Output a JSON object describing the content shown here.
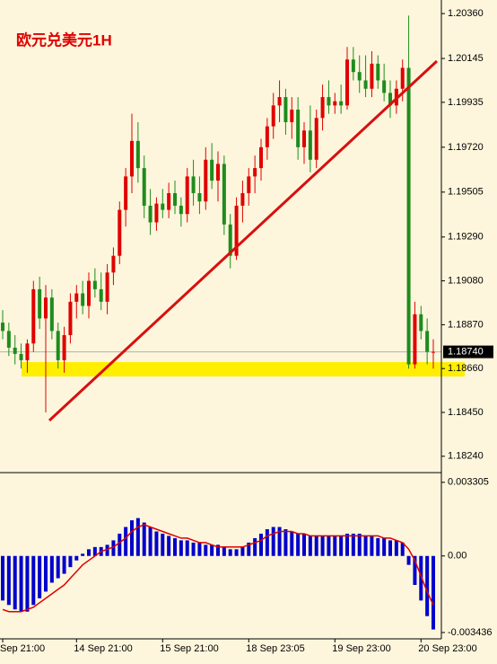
{
  "chart_data": [
    {
      "type": "candlestick",
      "title": "欧元兑美元1H",
      "up_color": "#e00000",
      "down_color": "#1e8c1e",
      "ylim": [
        1.18166,
        1.20425
      ],
      "yticks": [
        {
          "value": 1.2036,
          "label": "1.20360"
        },
        1.20145,
        1.19935,
        {
          "value": 1.1972,
          "label": "1.19720"
        },
        1.19505,
        {
          "value": 1.1929,
          "label": "1.19290"
        },
        {
          "value": 1.1908,
          "label": "1.19080"
        },
        {
          "value": 1.1887,
          "label": "1.18870"
        },
        {
          "value": 1.1866,
          "label": "1.18660"
        },
        {
          "value": 1.1845,
          "label": "1.18450"
        },
        {
          "value": 1.1824,
          "label": "1.18240"
        }
      ],
      "current_price": {
        "value": 1.1874,
        "label": "1.18740"
      },
      "ohlc": [
        [
          1.1888,
          1.1894,
          1.188,
          1.1884
        ],
        [
          1.1884,
          1.1888,
          1.1872,
          1.1876
        ],
        [
          1.1876,
          1.1882,
          1.1868,
          1.1873
        ],
        [
          1.1873,
          1.1878,
          1.1866,
          1.187
        ],
        [
          1.187,
          1.188,
          1.1864,
          1.1878
        ],
        [
          1.1878,
          1.1908,
          1.1874,
          1.1904
        ],
        [
          1.1904,
          1.191,
          1.1885,
          1.189
        ],
        [
          1.189,
          1.1906,
          1.1845,
          1.19
        ],
        [
          1.19,
          1.1904,
          1.188,
          1.1884
        ],
        [
          1.1884,
          1.1888,
          1.1866,
          1.187
        ],
        [
          1.187,
          1.1886,
          1.1864,
          1.1882
        ],
        [
          1.1882,
          1.1902,
          1.1878,
          1.1898
        ],
        [
          1.1898,
          1.1906,
          1.189,
          1.1902
        ],
        [
          1.1902,
          1.1908,
          1.1892,
          1.1896
        ],
        [
          1.1896,
          1.1912,
          1.189,
          1.1908
        ],
        [
          1.1908,
          1.1914,
          1.19,
          1.1904
        ],
        [
          1.1904,
          1.1912,
          1.1894,
          1.1898
        ],
        [
          1.1898,
          1.1916,
          1.1892,
          1.1912
        ],
        [
          1.1912,
          1.1924,
          1.1906,
          1.192
        ],
        [
          1.192,
          1.1946,
          1.1916,
          1.1942
        ],
        [
          1.1942,
          1.1962,
          1.1934,
          1.1958
        ],
        [
          1.1958,
          1.1988,
          1.195,
          1.1975
        ],
        [
          1.1975,
          1.1984,
          1.1955,
          1.1962
        ],
        [
          1.1962,
          1.1968,
          1.1938,
          1.1944
        ],
        [
          1.1944,
          1.1952,
          1.193,
          1.1936
        ],
        [
          1.1936,
          1.1948,
          1.1932,
          1.1945
        ],
        [
          1.1945,
          1.1952,
          1.1938,
          1.1942
        ],
        [
          1.1942,
          1.1955,
          1.1938,
          1.195
        ],
        [
          1.195,
          1.1956,
          1.194,
          1.1944
        ],
        [
          1.1944,
          1.1948,
          1.1934,
          1.194
        ],
        [
          1.194,
          1.1962,
          1.1936,
          1.1958
        ],
        [
          1.1958,
          1.1966,
          1.1944,
          1.195
        ],
        [
          1.195,
          1.1958,
          1.194,
          1.1946
        ],
        [
          1.1946,
          1.1972,
          1.1942,
          1.1966
        ],
        [
          1.1966,
          1.1974,
          1.1952,
          1.1956
        ],
        [
          1.1956,
          1.197,
          1.1946,
          1.1964
        ],
        [
          1.1964,
          1.1968,
          1.193,
          1.1935
        ],
        [
          1.1935,
          1.194,
          1.1914,
          1.192
        ],
        [
          1.192,
          1.1948,
          1.1918,
          1.1944
        ],
        [
          1.1944,
          1.1956,
          1.1936,
          1.195
        ],
        [
          1.195,
          1.1962,
          1.1944,
          1.1958
        ],
        [
          1.1958,
          1.1968,
          1.195,
          1.1962
        ],
        [
          1.1962,
          1.1976,
          1.1956,
          1.1972
        ],
        [
          1.1972,
          1.1986,
          1.1966,
          1.1982
        ],
        [
          1.1982,
          1.1998,
          1.1976,
          1.1992
        ],
        [
          1.1992,
          1.2004,
          1.1984,
          1.1996
        ],
        [
          1.1996,
          1.2,
          1.1978,
          1.1984
        ],
        [
          1.1984,
          1.1996,
          1.1976,
          1.199
        ],
        [
          1.199,
          1.1996,
          1.1966,
          1.1972
        ],
        [
          1.1972,
          1.1984,
          1.1964,
          1.198
        ],
        [
          1.198,
          1.1992,
          1.196,
          1.1966
        ],
        [
          1.1966,
          1.199,
          1.1962,
          1.1986
        ],
        [
          1.1986,
          1.2002,
          1.198,
          1.1996
        ],
        [
          1.1996,
          1.2004,
          1.1988,
          1.1992
        ],
        [
          1.1992,
          1.1998,
          1.1988,
          1.1994
        ],
        [
          1.1994,
          1.2002,
          1.1988,
          1.1992
        ],
        [
          1.1992,
          1.202,
          1.199,
          1.2014
        ],
        [
          1.2014,
          1.202,
          1.2004,
          1.2008
        ],
        [
          1.2008,
          1.2016,
          1.1998,
          1.2004
        ],
        [
          1.2004,
          1.2016,
          1.1996,
          1.2
        ],
        [
          1.2,
          1.2018,
          1.1996,
          1.2012
        ],
        [
          1.2012,
          1.2016,
          1.2,
          1.2004
        ],
        [
          1.2004,
          1.2012,
          1.1994,
          1.1998
        ],
        [
          1.1998,
          1.2004,
          1.1986,
          1.1992
        ],
        [
          1.1992,
          1.2004,
          1.1988,
          1.2
        ],
        [
          1.2,
          1.2014,
          1.1994,
          1.201
        ],
        [
          1.201,
          1.2035,
          1.1866,
          1.1868
        ],
        [
          1.1868,
          1.1898,
          1.1866,
          1.1892
        ],
        [
          1.1892,
          1.1896,
          1.188,
          1.1884
        ],
        [
          1.1884,
          1.189,
          1.1868,
          1.1874
        ],
        [
          1.1874,
          1.188,
          1.1866,
          1.1874
        ]
      ]
    },
    {
      "type": "macd",
      "ylim": [
        -0.00368,
        0.00366
      ],
      "yticks": [
        0.003305,
        {
          "value": 0,
          "label": "0.00"
        },
        -0.003436
      ],
      "categories": [
        "Sep 21:00",
        null,
        null,
        null,
        null,
        null,
        null,
        null,
        null,
        null,
        null,
        null,
        "14 Sep 21:00",
        null,
        null,
        null,
        null,
        null,
        null,
        null,
        null,
        null,
        null,
        null,
        null,
        null,
        "15 Sep 21:00",
        null,
        null,
        null,
        null,
        null,
        null,
        null,
        null,
        null,
        null,
        null,
        null,
        null,
        "18 Sep 23:05",
        null,
        null,
        null,
        null,
        null,
        null,
        null,
        null,
        null,
        null,
        null,
        null,
        null,
        "19 Sep 23:00",
        null,
        null,
        null,
        null,
        null,
        null,
        null,
        null,
        null,
        null,
        null,
        null,
        null,
        "20 Sep 23:00",
        null,
        null
      ],
      "series": [
        {
          "kind": "bar",
          "color": "#0000cc",
          "values": [
            -0.002,
            -0.0022,
            -0.0024,
            -0.0025,
            -0.0025,
            -0.0022,
            -0.0019,
            -0.0016,
            -0.0012,
            -0.001,
            -0.0008,
            -0.0005,
            -0.0002,
            0.0001,
            0.0003,
            0.0004,
            0.0004,
            0.0005,
            0.0007,
            0.001,
            0.0013,
            0.0016,
            0.0017,
            0.0015,
            0.0013,
            0.0011,
            0.001,
            0.0009,
            0.0008,
            0.0007,
            0.0007,
            0.0006,
            0.0006,
            0.0005,
            0.0005,
            0.0005,
            0.0004,
            0.0003,
            0.0003,
            0.0004,
            0.0006,
            0.0008,
            0.001,
            0.0012,
            0.0013,
            0.0013,
            0.0012,
            0.0011,
            0.001,
            0.001,
            0.0009,
            0.0009,
            0.0009,
            0.0009,
            0.0009,
            0.0009,
            0.001,
            0.001,
            0.001,
            0.0009,
            0.0009,
            0.0008,
            0.0008,
            0.0007,
            0.0007,
            0.0006,
            -0.0004,
            -0.0013,
            -0.002,
            -0.0027,
            -0.0033
          ]
        },
        {
          "kind": "line",
          "color": "#e00000",
          "values": [
            -0.0024,
            -0.0025,
            -0.0025,
            -0.0025,
            -0.0024,
            -0.0023,
            -0.0021,
            -0.0019,
            -0.0017,
            -0.0015,
            -0.0013,
            -0.001,
            -0.0007,
            -0.0004,
            -0.0002,
            0.0,
            0.0002,
            0.0003,
            0.0004,
            0.0006,
            0.0008,
            0.0011,
            0.0013,
            0.0014,
            0.0013,
            0.0012,
            0.0011,
            0.001,
            0.0009,
            0.0008,
            0.0008,
            0.0007,
            0.0006,
            0.0006,
            0.0005,
            0.0004,
            0.0004,
            0.0004,
            0.0004,
            0.0004,
            0.0005,
            0.0006,
            0.0007,
            0.0009,
            0.001,
            0.0011,
            0.0011,
            0.0011,
            0.001,
            0.001,
            0.0009,
            0.0009,
            0.0009,
            0.0009,
            0.0009,
            0.0009,
            0.0009,
            0.0009,
            0.0009,
            0.0009,
            0.0009,
            0.0009,
            0.0008,
            0.0008,
            0.0007,
            0.0006,
            0.0003,
            -0.0002,
            -0.0009,
            -0.0016,
            -0.0022
          ]
        }
      ]
    }
  ]
}
